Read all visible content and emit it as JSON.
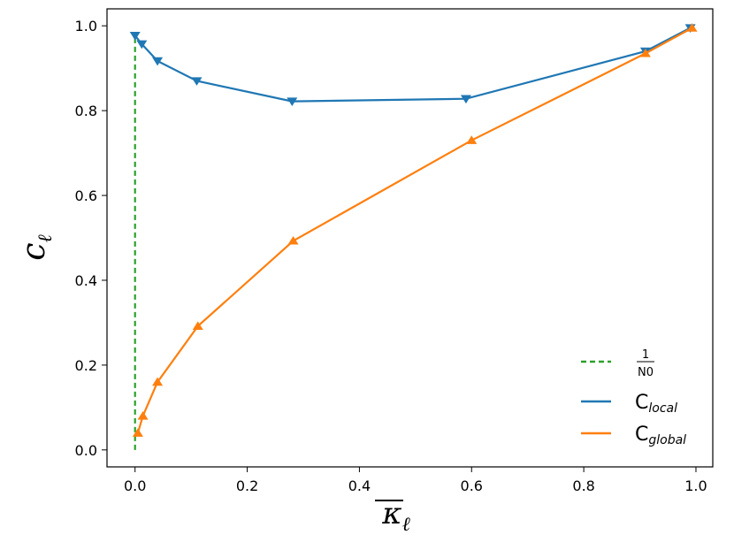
{
  "chart_data": {
    "type": "line",
    "xlabel": "κℓ",
    "ylabel": "cℓ",
    "xlim": [
      -0.05,
      1.03
    ],
    "ylim": [
      -0.04,
      1.04
    ],
    "x_ticks": [
      "0.0",
      "0.2",
      "0.4",
      "0.6",
      "0.8",
      "1.0"
    ],
    "y_ticks": [
      "0.0",
      "0.2",
      "0.4",
      "0.6",
      "0.8",
      "1.0"
    ],
    "grid": false,
    "legend_position": "bottom-right",
    "reference_line": {
      "name_numerator": "1",
      "name_denominator": "N0",
      "x": 0.0,
      "y_range": [
        0.0,
        0.98
      ],
      "style": "dashed",
      "color": "#2ca02c"
    },
    "series": [
      {
        "name": "Clocal",
        "name_main": "C",
        "name_sub": "local",
        "color": "#1f77b4",
        "marker": "triangle-down",
        "x": [
          0.0,
          0.012,
          0.04,
          0.11,
          0.28,
          0.59,
          0.91,
          0.99
        ],
        "y": [
          0.977,
          0.957,
          0.917,
          0.87,
          0.822,
          0.828,
          0.94,
          0.995
        ]
      },
      {
        "name": "Cglobal",
        "name_main": "C",
        "name_sub": "global",
        "color": "#ff7f0e",
        "marker": "triangle-up",
        "x": [
          0.005,
          0.014,
          0.04,
          0.112,
          0.282,
          0.6,
          0.91,
          0.993
        ],
        "y": [
          0.04,
          0.08,
          0.16,
          0.292,
          0.493,
          0.73,
          0.935,
          0.995
        ]
      }
    ]
  }
}
